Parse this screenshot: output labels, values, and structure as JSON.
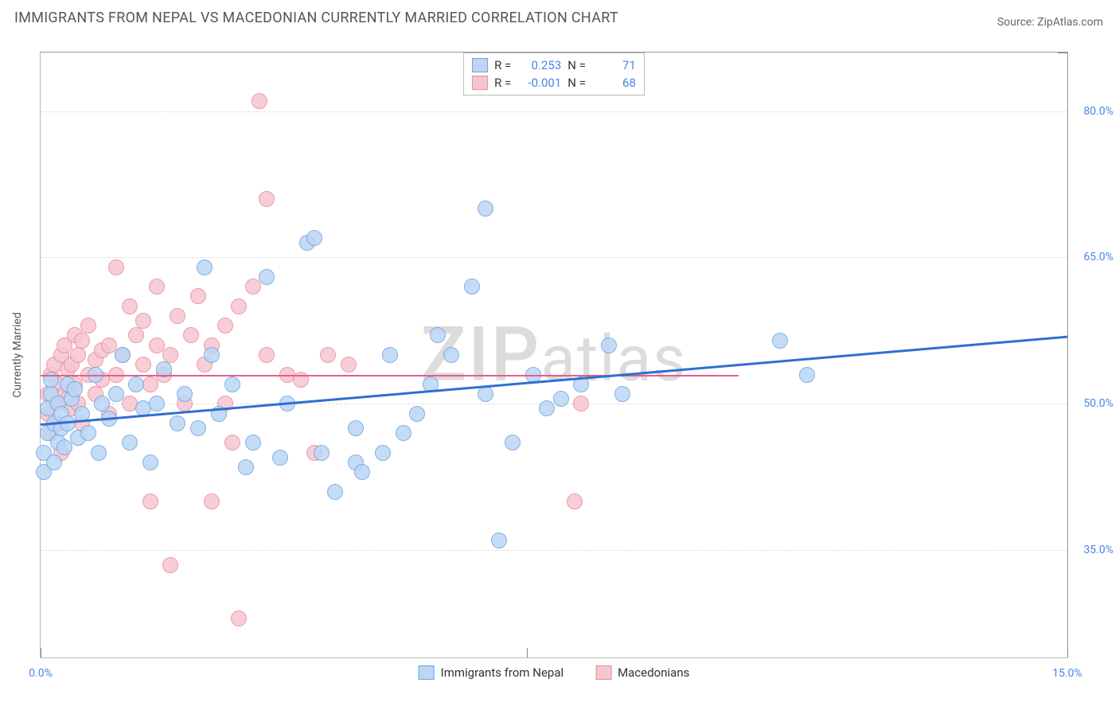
{
  "title": "IMMIGRANTS FROM NEPAL VS MACEDONIAN CURRENTLY MARRIED CORRELATION CHART",
  "source_label": "Source: ",
  "source_name": "ZipAtlas.com",
  "watermark": "ZIPatlas",
  "chart": {
    "type": "scatter",
    "xlim": [
      0,
      15
    ],
    "ylim": [
      24,
      86
    ],
    "x_ticks": [
      {
        "v": 0,
        "label": "0.0%"
      },
      {
        "v": 15,
        "label": "15.0%"
      }
    ],
    "y_ticks": [
      {
        "v": 35,
        "label": "35.0%"
      },
      {
        "v": 50,
        "label": "50.0%"
      },
      {
        "v": 65,
        "label": "65.0%"
      },
      {
        "v": 80,
        "label": "80.0%"
      }
    ],
    "grid_y": [
      35,
      50,
      65,
      80
    ],
    "x_major_ticks": [
      0,
      7.1,
      15
    ],
    "y_major_ticks_right": [
      86
    ],
    "ylabel": "Currently Married",
    "background_color": "#ffffff",
    "grid_color": "#dcdcdc",
    "marker_radius": 10,
    "marker_border": 1,
    "series": [
      {
        "id": "nepal",
        "label": "Immigrants from Nepal",
        "fill": "#bcd6f5",
        "stroke": "#6fa3e0",
        "stats": {
          "R": "0.253",
          "N": "71"
        },
        "regression": {
          "x1": 0,
          "y1": 48,
          "x2": 15,
          "y2": 57,
          "color": "#2f6fd1",
          "width": 3
        },
        "points": [
          [
            0.05,
            43
          ],
          [
            0.05,
            45
          ],
          [
            0.1,
            47
          ],
          [
            0.1,
            49.5
          ],
          [
            0.15,
            51
          ],
          [
            0.15,
            52.5
          ],
          [
            0.2,
            44
          ],
          [
            0.2,
            48
          ],
          [
            0.25,
            46
          ],
          [
            0.25,
            50
          ],
          [
            0.3,
            47.5
          ],
          [
            0.3,
            49
          ],
          [
            0.35,
            45.5
          ],
          [
            0.4,
            52
          ],
          [
            0.4,
            48
          ],
          [
            0.45,
            50.5
          ],
          [
            0.5,
            51.5
          ],
          [
            0.55,
            46.5
          ],
          [
            0.6,
            49
          ],
          [
            0.7,
            47
          ],
          [
            0.8,
            53
          ],
          [
            0.85,
            45
          ],
          [
            0.9,
            50
          ],
          [
            1.0,
            48.5
          ],
          [
            1.1,
            51
          ],
          [
            1.2,
            55
          ],
          [
            1.3,
            46
          ],
          [
            1.4,
            52
          ],
          [
            1.5,
            49.5
          ],
          [
            1.6,
            44
          ],
          [
            1.7,
            50
          ],
          [
            1.8,
            53.5
          ],
          [
            2.0,
            48
          ],
          [
            2.1,
            51
          ],
          [
            2.3,
            47.5
          ],
          [
            2.4,
            64
          ],
          [
            2.5,
            55
          ],
          [
            2.6,
            49
          ],
          [
            2.8,
            52
          ],
          [
            3.0,
            43.5
          ],
          [
            3.1,
            46
          ],
          [
            3.3,
            63
          ],
          [
            3.5,
            44.5
          ],
          [
            3.6,
            50
          ],
          [
            3.9,
            66.5
          ],
          [
            4.1,
            45
          ],
          [
            4.3,
            41
          ],
          [
            4.6,
            47.5
          ],
          [
            4.6,
            44
          ],
          [
            4.7,
            43
          ],
          [
            5.0,
            45
          ],
          [
            5.1,
            55
          ],
          [
            5.3,
            47
          ],
          [
            5.5,
            49
          ],
          [
            5.7,
            52
          ],
          [
            5.8,
            57
          ],
          [
            6.0,
            55
          ],
          [
            6.3,
            62
          ],
          [
            6.5,
            70
          ],
          [
            6.5,
            51
          ],
          [
            6.7,
            36
          ],
          [
            6.9,
            46
          ],
          [
            7.2,
            53
          ],
          [
            7.4,
            49.5
          ],
          [
            7.6,
            50.5
          ],
          [
            7.9,
            52
          ],
          [
            8.3,
            56
          ],
          [
            8.5,
            51
          ],
          [
            10.8,
            56.5
          ],
          [
            11.2,
            53
          ],
          [
            4.0,
            67
          ]
        ]
      },
      {
        "id": "maced",
        "label": "Macedonians",
        "fill": "#f6c6ce",
        "stroke": "#e88aa0",
        "stats": {
          "R": "-0.001",
          "N": "68"
        },
        "regression": {
          "x1": 0,
          "y1": 53,
          "x2": 10.2,
          "y2": 53,
          "color": "#e85d8a",
          "width": 2.5
        },
        "points": [
          [
            0.1,
            49
          ],
          [
            0.1,
            51
          ],
          [
            0.15,
            47
          ],
          [
            0.15,
            53
          ],
          [
            0.2,
            50
          ],
          [
            0.2,
            54
          ],
          [
            0.25,
            48
          ],
          [
            0.25,
            52
          ],
          [
            0.3,
            45
          ],
          [
            0.3,
            55
          ],
          [
            0.35,
            51
          ],
          [
            0.35,
            56
          ],
          [
            0.4,
            53.5
          ],
          [
            0.4,
            50.5
          ],
          [
            0.45,
            54
          ],
          [
            0.45,
            49.5
          ],
          [
            0.5,
            52
          ],
          [
            0.5,
            57
          ],
          [
            0.55,
            55
          ],
          [
            0.55,
            50
          ],
          [
            0.6,
            56.5
          ],
          [
            0.6,
            48
          ],
          [
            0.7,
            53
          ],
          [
            0.7,
            58
          ],
          [
            0.8,
            54.5
          ],
          [
            0.8,
            51
          ],
          [
            0.9,
            55.5
          ],
          [
            0.9,
            52.5
          ],
          [
            1.0,
            56
          ],
          [
            1.0,
            49
          ],
          [
            1.1,
            64
          ],
          [
            1.1,
            53
          ],
          [
            1.2,
            55
          ],
          [
            1.3,
            60
          ],
          [
            1.3,
            50
          ],
          [
            1.4,
            57
          ],
          [
            1.5,
            54
          ],
          [
            1.5,
            58.5
          ],
          [
            1.6,
            52
          ],
          [
            1.6,
            40
          ],
          [
            1.7,
            56
          ],
          [
            1.7,
            62
          ],
          [
            1.8,
            53
          ],
          [
            1.9,
            55
          ],
          [
            1.9,
            33.5
          ],
          [
            2.0,
            59
          ],
          [
            2.1,
            50
          ],
          [
            2.2,
            57
          ],
          [
            2.3,
            61
          ],
          [
            2.4,
            54
          ],
          [
            2.5,
            56
          ],
          [
            2.5,
            40
          ],
          [
            2.7,
            58
          ],
          [
            2.7,
            50
          ],
          [
            2.8,
            46
          ],
          [
            2.9,
            60
          ],
          [
            2.9,
            28
          ],
          [
            3.1,
            62
          ],
          [
            3.2,
            81
          ],
          [
            3.3,
            55
          ],
          [
            3.3,
            71
          ],
          [
            3.6,
            53
          ],
          [
            3.8,
            52.5
          ],
          [
            4.0,
            45
          ],
          [
            4.2,
            55
          ],
          [
            4.5,
            54
          ],
          [
            7.8,
            40
          ],
          [
            7.9,
            50
          ]
        ]
      }
    ]
  },
  "top_legend": {
    "cols": [
      "R =",
      "N ="
    ]
  },
  "style": {
    "title_color": "#555555",
    "tick_color": "#4a86e8"
  }
}
